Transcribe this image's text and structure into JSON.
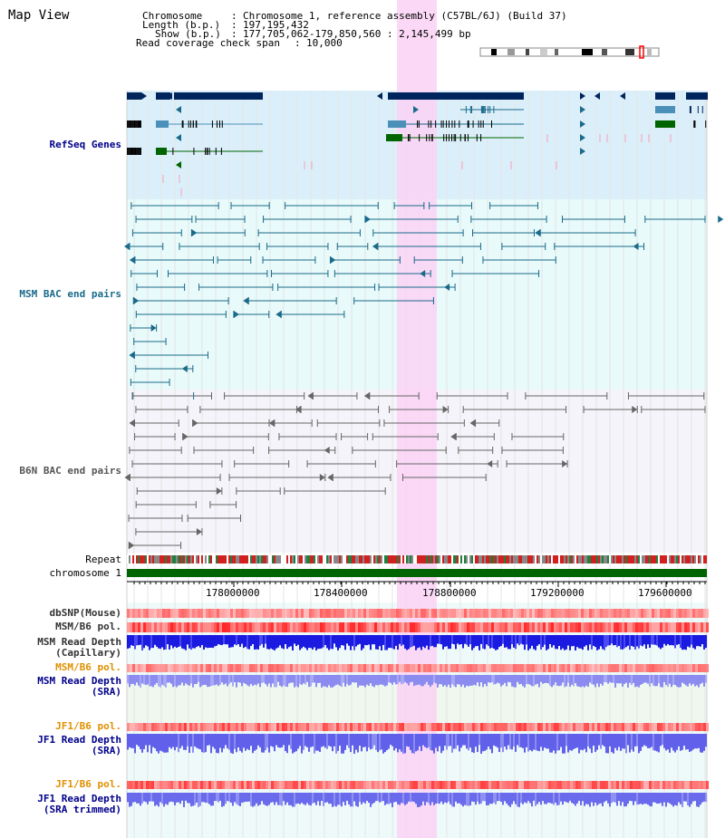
{
  "title": "Map View",
  "header": {
    "chromosome_label": "Chromosome",
    "chromosome_value": "Chromosome 1, reference assembly (C57BL/6J) (Build 37)",
    "length_label": "Length (b.p.)",
    "length_value": "197,195,432",
    "show_label": "Show (b.p.)",
    "show_value": "177,705,062-179,850,560 : 2,145,499 bp",
    "coverage_label": "Read coverage check span",
    "coverage_value": "10,000"
  },
  "tracks": {
    "refseq": "RefSeq Genes",
    "msm_bac": "MSM BAC end pairs",
    "b6n_bac": "B6N BAC end pairs",
    "repeat": "Repeat",
    "chromosome": "chromosome 1",
    "dbsnp": "dbSNP(Mouse)",
    "msm_b6_pol_1": "MSM/B6 pol.",
    "msm_depth_cap_1": "MSM Read Depth",
    "msm_depth_cap_2": "(Capillary)",
    "msm_b6_pol_2": "MSM/B6 pol.",
    "msm_depth_sra_1": "MSM Read Depth",
    "msm_depth_sra_2": "(SRA)",
    "jf1_b6_pol_1": "JF1/B6 pol.",
    "jf1_depth_sra_1": "JF1 Read Depth",
    "jf1_depth_sra_2": "(SRA)",
    "jf1_b6_pol_2": "JF1/B6 pol.",
    "jf1_depth_trim_1": "JF1 Read Depth",
    "jf1_depth_trim_2": "(SRA trimmed)"
  },
  "ticks": [
    "178000000",
    "178400000",
    "178800000",
    "179200000",
    "179600000"
  ],
  "colors": {
    "refseq_bg": "#dbeffa",
    "msm_bg": "#e8fafa",
    "b6n_bg": "#f4f4fa",
    "highlight": "#fad2f4",
    "refseq_dark": "#00245c",
    "refseq_mid": "#4a90b8",
    "refseq_green": "#006400",
    "msm_color": "#1a6a8a",
    "b6n_color": "#666666",
    "chrom_green": "#006400",
    "depth_blue": "#1a1ae0",
    "depth_light": "#8c8cf0",
    "pol_red": "#f04040",
    "track_label_blue": "#00008b",
    "track_label_teal": "#1a6a8a",
    "track_label_orange": "#e09000"
  }
}
